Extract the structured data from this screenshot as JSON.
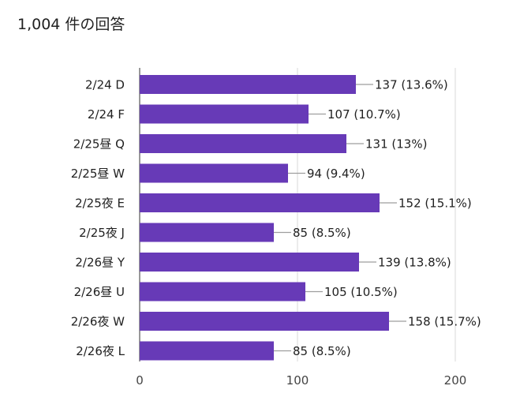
{
  "header": {
    "response_count": "1,004 件の回答"
  },
  "chart_data": {
    "type": "bar",
    "orientation": "horizontal",
    "categories": [
      "2/24 D",
      "2/24 F",
      "2/25昼 Q",
      "2/25昼 W",
      "2/25夜 E",
      "2/25夜 J",
      "2/26昼 Y",
      "2/26昼 U",
      "2/26夜 W",
      "2/26夜 L"
    ],
    "values": [
      137,
      107,
      131,
      94,
      152,
      85,
      139,
      105,
      158,
      85
    ],
    "data_labels": [
      "137 (13.6%)",
      "107 (10.7%)",
      "131 (13%)",
      "94 (9.4%)",
      "152 (15.1%)",
      "85 (8.5%)",
      "139 (13.8%)",
      "105 (10.5%)",
      "158 (15.7%)",
      "85 (8.5%)"
    ],
    "xlim": [
      0,
      200
    ],
    "x_ticks": [
      0,
      100,
      200
    ],
    "x_tick_labels": [
      "0",
      "100",
      "200"
    ],
    "grid": true,
    "bar_color": "#673ab7",
    "grid_color": "#d9d9d9",
    "leader_color": "#9e9e9e"
  }
}
